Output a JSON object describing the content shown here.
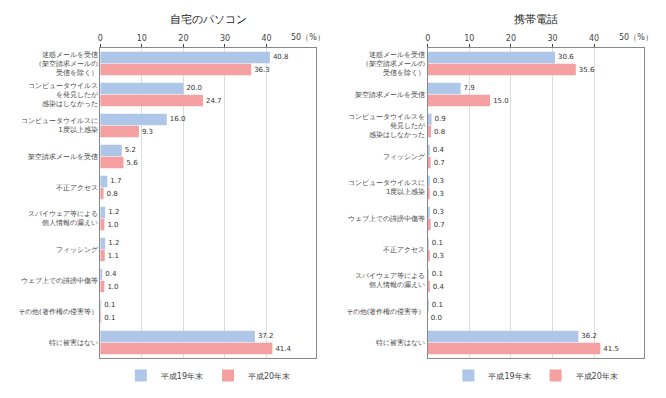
{
  "chart_data": [
    {
      "type": "bar",
      "orientation": "horizontal",
      "title": "自宅のパソコン",
      "categories": [
        "迷惑メールを受信\n（架空請求メールの\n受信を除く）",
        "コンピュータウイルス\nを発見したが\n感染はしなかった",
        "コンピュータウイルスに\n1度以上感染",
        "架空請求メールを受信",
        "不正アクセス",
        "スパイウェア等による\n個人情報の漏えい",
        "フィッシング",
        "ウェブ上での誹謗中傷等",
        "その他(著作権の侵害等）",
        "特に被害はない"
      ],
      "series": [
        {
          "name": "平成19年末",
          "color": "#aec6e8",
          "values": [
            40.8,
            20.0,
            16.0,
            5.2,
            1.7,
            1.2,
            1.2,
            0.4,
            0.1,
            37.2
          ]
        },
        {
          "name": "平成20年末",
          "color": "#f4a0a0",
          "values": [
            36.3,
            24.7,
            9.3,
            5.6,
            0.8,
            1.0,
            1.1,
            1.0,
            0.1,
            41.4
          ]
        }
      ],
      "xlim": [
        0,
        52
      ],
      "xticks": [
        0,
        10,
        20,
        30,
        40
      ],
      "annotations": [
        {
          "text": "50（%）",
          "x": 50
        }
      ],
      "grid": true,
      "data_labels": true,
      "legend": "bottom"
    },
    {
      "type": "bar",
      "orientation": "horizontal",
      "title": "携帯電話",
      "categories": [
        "迷惑メールを受信\n（架空請求メールの\n受信を除く）",
        "架空請求メールを受信",
        "コンピュータウイルスを\n発見したが\n感染はしなかった",
        "フィッシング",
        "コンピュータウイルスに\n1度以上感染",
        "ウェブ上での誹謗中傷等",
        "不正アクセス",
        "スパイウェア等による\n個人情報の漏えい",
        "その他(著作権の侵害等）",
        "特に被害はない"
      ],
      "series": [
        {
          "name": "平成19年末",
          "color": "#aec6e8",
          "values": [
            30.6,
            7.9,
            0.9,
            0.4,
            0.3,
            0.3,
            0.1,
            0.1,
            0.1,
            36.2
          ]
        },
        {
          "name": "平成20年末",
          "color": "#f4a0a0",
          "values": [
            35.6,
            15.0,
            0.8,
            0.7,
            0.3,
            0.7,
            0.3,
            0.4,
            0.0,
            41.5
          ]
        }
      ],
      "xlim": [
        0,
        52
      ],
      "xticks": [
        0,
        10,
        20,
        30,
        40
      ],
      "annotations": [
        {
          "text": "50（%）",
          "x": 50
        }
      ],
      "grid": true,
      "data_labels": true,
      "legend": "bottom"
    }
  ]
}
